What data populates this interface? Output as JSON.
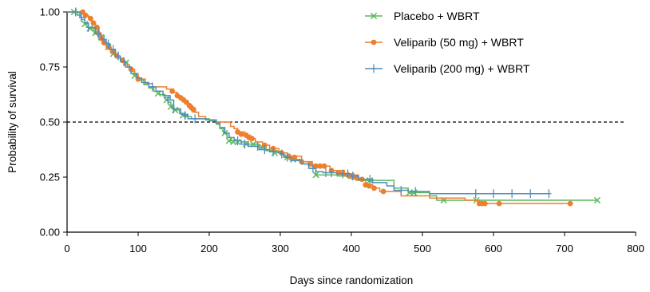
{
  "chart_data": {
    "type": "line",
    "subtype": "kaplan-meier",
    "title": "",
    "xlabel": "Days since randomization",
    "ylabel": "Probability of survival",
    "xlim": [
      0,
      800
    ],
    "ylim": [
      0,
      1
    ],
    "x_ticks": [
      "0",
      "100",
      "200",
      "300",
      "400",
      "500",
      "600",
      "700",
      "800"
    ],
    "y_ticks": [
      "0.00",
      "0.25",
      "0.50",
      "0.75",
      "1.00"
    ],
    "reference_line": {
      "y": 0.5,
      "style": "dashed",
      "color": "#000000"
    },
    "grid": false,
    "legend_position": "top-right",
    "series": [
      {
        "name": "Placebo + WBRT",
        "color": "#5cb85c",
        "marker": "x",
        "steps": [
          [
            0,
            1.0
          ],
          [
            10,
            1.0
          ],
          [
            15,
            0.985
          ],
          [
            20,
            0.965
          ],
          [
            25,
            0.945
          ],
          [
            30,
            0.925
          ],
          [
            38,
            0.905
          ],
          [
            45,
            0.885
          ],
          [
            50,
            0.865
          ],
          [
            55,
            0.845
          ],
          [
            60,
            0.83
          ],
          [
            65,
            0.81
          ],
          [
            72,
            0.79
          ],
          [
            80,
            0.77
          ],
          [
            85,
            0.75
          ],
          [
            90,
            0.73
          ],
          [
            95,
            0.71
          ],
          [
            100,
            0.69
          ],
          [
            108,
            0.67
          ],
          [
            115,
            0.655
          ],
          [
            122,
            0.64
          ],
          [
            130,
            0.625
          ],
          [
            138,
            0.61
          ],
          [
            142,
            0.59
          ],
          [
            146,
            0.57
          ],
          [
            150,
            0.555
          ],
          [
            158,
            0.54
          ],
          [
            165,
            0.525
          ],
          [
            175,
            0.515
          ],
          [
            200,
            0.505
          ],
          [
            210,
            0.49
          ],
          [
            215,
            0.47
          ],
          [
            220,
            0.45
          ],
          [
            225,
            0.43
          ],
          [
            230,
            0.415
          ],
          [
            245,
            0.41
          ],
          [
            255,
            0.4
          ],
          [
            270,
            0.385
          ],
          [
            280,
            0.37
          ],
          [
            295,
            0.36
          ],
          [
            305,
            0.345
          ],
          [
            315,
            0.33
          ],
          [
            330,
            0.31
          ],
          [
            340,
            0.29
          ],
          [
            350,
            0.26
          ],
          [
            380,
            0.255
          ],
          [
            395,
            0.25
          ],
          [
            410,
            0.235
          ],
          [
            460,
            0.2
          ],
          [
            480,
            0.18
          ],
          [
            510,
            0.165
          ],
          [
            520,
            0.145
          ],
          [
            560,
            0.145
          ],
          [
            600,
            0.145
          ],
          [
            745,
            0.145
          ]
        ],
        "censored": [
          [
            10,
            1.0
          ],
          [
            25,
            0.945
          ],
          [
            32,
            0.925
          ],
          [
            40,
            0.905
          ],
          [
            48,
            0.885
          ],
          [
            58,
            0.84
          ],
          [
            65,
            0.81
          ],
          [
            83,
            0.77
          ],
          [
            95,
            0.71
          ],
          [
            128,
            0.63
          ],
          [
            140,
            0.6
          ],
          [
            146,
            0.57
          ],
          [
            152,
            0.555
          ],
          [
            163,
            0.53
          ],
          [
            222,
            0.45
          ],
          [
            228,
            0.415
          ],
          [
            234,
            0.41
          ],
          [
            240,
            0.41
          ],
          [
            252,
            0.4
          ],
          [
            262,
            0.4
          ],
          [
            275,
            0.385
          ],
          [
            292,
            0.36
          ],
          [
            310,
            0.34
          ],
          [
            318,
            0.33
          ],
          [
            350,
            0.26
          ],
          [
            400,
            0.255
          ],
          [
            426,
            0.235
          ],
          [
            482,
            0.18
          ],
          [
            488,
            0.18
          ],
          [
            530,
            0.145
          ],
          [
            576,
            0.145
          ],
          [
            746,
            0.145
          ]
        ]
      },
      {
        "name": "Veliparib (50 mg) + WBRT",
        "color": "#ee7f2d",
        "marker": "circle",
        "steps": [
          [
            0,
            1.0
          ],
          [
            22,
            1.0
          ],
          [
            25,
            0.985
          ],
          [
            30,
            0.97
          ],
          [
            35,
            0.95
          ],
          [
            40,
            0.93
          ],
          [
            45,
            0.9
          ],
          [
            48,
            0.88
          ],
          [
            52,
            0.86
          ],
          [
            58,
            0.84
          ],
          [
            62,
            0.82
          ],
          [
            68,
            0.8
          ],
          [
            75,
            0.78
          ],
          [
            80,
            0.76
          ],
          [
            88,
            0.74
          ],
          [
            95,
            0.72
          ],
          [
            100,
            0.695
          ],
          [
            110,
            0.675
          ],
          [
            120,
            0.66
          ],
          [
            140,
            0.65
          ],
          [
            150,
            0.635
          ],
          [
            155,
            0.62
          ],
          [
            160,
            0.61
          ],
          [
            165,
            0.595
          ],
          [
            170,
            0.58
          ],
          [
            175,
            0.565
          ],
          [
            180,
            0.545
          ],
          [
            185,
            0.525
          ],
          [
            195,
            0.51
          ],
          [
            210,
            0.5
          ],
          [
            230,
            0.48
          ],
          [
            235,
            0.47
          ],
          [
            240,
            0.455
          ],
          [
            250,
            0.44
          ],
          [
            258,
            0.425
          ],
          [
            265,
            0.41
          ],
          [
            275,
            0.395
          ],
          [
            285,
            0.38
          ],
          [
            298,
            0.36
          ],
          [
            310,
            0.345
          ],
          [
            330,
            0.32
          ],
          [
            345,
            0.3
          ],
          [
            370,
            0.28
          ],
          [
            390,
            0.26
          ],
          [
            410,
            0.24
          ],
          [
            420,
            0.215
          ],
          [
            430,
            0.2
          ],
          [
            440,
            0.185
          ],
          [
            470,
            0.165
          ],
          [
            510,
            0.155
          ],
          [
            560,
            0.145
          ],
          [
            580,
            0.13
          ],
          [
            708,
            0.13
          ]
        ],
        "censored": [
          [
            22,
            1.0
          ],
          [
            26,
            0.985
          ],
          [
            33,
            0.97
          ],
          [
            37,
            0.95
          ],
          [
            42,
            0.93
          ],
          [
            45,
            0.9
          ],
          [
            48,
            0.88
          ],
          [
            52,
            0.86
          ],
          [
            58,
            0.84
          ],
          [
            64,
            0.82
          ],
          [
            70,
            0.8
          ],
          [
            78,
            0.78
          ],
          [
            90,
            0.74
          ],
          [
            100,
            0.695
          ],
          [
            148,
            0.64
          ],
          [
            155,
            0.62
          ],
          [
            160,
            0.61
          ],
          [
            164,
            0.6
          ],
          [
            168,
            0.59
          ],
          [
            172,
            0.575
          ],
          [
            175,
            0.565
          ],
          [
            178,
            0.555
          ],
          [
            240,
            0.455
          ],
          [
            245,
            0.445
          ],
          [
            252,
            0.44
          ],
          [
            256,
            0.43
          ],
          [
            260,
            0.425
          ],
          [
            278,
            0.395
          ],
          [
            290,
            0.38
          ],
          [
            302,
            0.36
          ],
          [
            312,
            0.345
          ],
          [
            320,
            0.34
          ],
          [
            330,
            0.32
          ],
          [
            342,
            0.31
          ],
          [
            350,
            0.3
          ],
          [
            356,
            0.3
          ],
          [
            362,
            0.3
          ],
          [
            372,
            0.28
          ],
          [
            382,
            0.27
          ],
          [
            388,
            0.265
          ],
          [
            395,
            0.26
          ],
          [
            402,
            0.25
          ],
          [
            408,
            0.245
          ],
          [
            415,
            0.24
          ],
          [
            420,
            0.215
          ],
          [
            425,
            0.21
          ],
          [
            432,
            0.2
          ],
          [
            445,
            0.185
          ],
          [
            580,
            0.13
          ],
          [
            584,
            0.13
          ],
          [
            588,
            0.13
          ],
          [
            608,
            0.13
          ],
          [
            708,
            0.13
          ]
        ]
      },
      {
        "name": "Veliparib (200 mg) + WBRT",
        "color": "#4f8fbf",
        "marker": "plus",
        "steps": [
          [
            0,
            1.0
          ],
          [
            12,
            1.0
          ],
          [
            18,
            0.975
          ],
          [
            25,
            0.95
          ],
          [
            30,
            0.93
          ],
          [
            40,
            0.9
          ],
          [
            48,
            0.875
          ],
          [
            55,
            0.855
          ],
          [
            60,
            0.83
          ],
          [
            68,
            0.8
          ],
          [
            75,
            0.775
          ],
          [
            82,
            0.75
          ],
          [
            90,
            0.72
          ],
          [
            98,
            0.7
          ],
          [
            105,
            0.68
          ],
          [
            115,
            0.66
          ],
          [
            125,
            0.64
          ],
          [
            135,
            0.62
          ],
          [
            145,
            0.6
          ],
          [
            150,
            0.56
          ],
          [
            160,
            0.535
          ],
          [
            170,
            0.515
          ],
          [
            195,
            0.51
          ],
          [
            210,
            0.495
          ],
          [
            215,
            0.475
          ],
          [
            222,
            0.45
          ],
          [
            228,
            0.43
          ],
          [
            235,
            0.415
          ],
          [
            245,
            0.4
          ],
          [
            255,
            0.39
          ],
          [
            270,
            0.375
          ],
          [
            285,
            0.365
          ],
          [
            300,
            0.355
          ],
          [
            305,
            0.34
          ],
          [
            315,
            0.325
          ],
          [
            330,
            0.31
          ],
          [
            340,
            0.29
          ],
          [
            350,
            0.275
          ],
          [
            360,
            0.27
          ],
          [
            380,
            0.265
          ],
          [
            400,
            0.255
          ],
          [
            410,
            0.24
          ],
          [
            430,
            0.225
          ],
          [
            450,
            0.21
          ],
          [
            460,
            0.19
          ],
          [
            480,
            0.185
          ],
          [
            510,
            0.175
          ],
          [
            520,
            0.175
          ],
          [
            678,
            0.175
          ]
        ],
        "censored": [
          [
            12,
            1.0
          ],
          [
            20,
            0.975
          ],
          [
            30,
            0.93
          ],
          [
            44,
            0.9
          ],
          [
            52,
            0.875
          ],
          [
            58,
            0.855
          ],
          [
            65,
            0.83
          ],
          [
            72,
            0.8
          ],
          [
            80,
            0.775
          ],
          [
            120,
            0.66
          ],
          [
            142,
            0.6
          ],
          [
            150,
            0.56
          ],
          [
            166,
            0.53
          ],
          [
            180,
            0.515
          ],
          [
            240,
            0.415
          ],
          [
            250,
            0.4
          ],
          [
            268,
            0.39
          ],
          [
            278,
            0.375
          ],
          [
            290,
            0.365
          ],
          [
            302,
            0.355
          ],
          [
            310,
            0.34
          ],
          [
            346,
            0.29
          ],
          [
            364,
            0.27
          ],
          [
            372,
            0.27
          ],
          [
            388,
            0.265
          ],
          [
            395,
            0.265
          ],
          [
            402,
            0.255
          ],
          [
            426,
            0.24
          ],
          [
            470,
            0.19
          ],
          [
            490,
            0.185
          ],
          [
            575,
            0.175
          ],
          [
            600,
            0.175
          ],
          [
            626,
            0.175
          ],
          [
            652,
            0.175
          ],
          [
            678,
            0.175
          ]
        ]
      }
    ]
  }
}
